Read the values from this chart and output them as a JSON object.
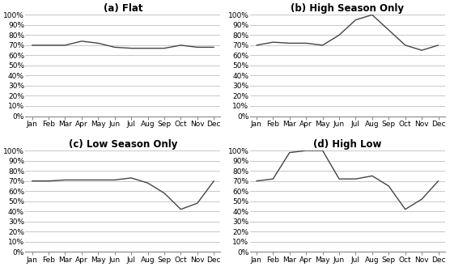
{
  "months": [
    "Jan",
    "Feb",
    "Mar",
    "Apr",
    "May",
    "Jun",
    "Jul",
    "Aug",
    "Sep",
    "Oct",
    "Nov",
    "Dec"
  ],
  "flat": [
    70,
    70,
    70,
    74,
    72,
    68,
    67,
    67,
    67,
    70,
    68,
    68
  ],
  "high_season": [
    70,
    73,
    72,
    72,
    70,
    80,
    95,
    100,
    85,
    70,
    65,
    70
  ],
  "low_season": [
    70,
    70,
    71,
    71,
    71,
    71,
    73,
    68,
    58,
    42,
    48,
    70
  ],
  "high_low": [
    70,
    72,
    98,
    100,
    100,
    72,
    72,
    75,
    65,
    42,
    52,
    70
  ],
  "titles": [
    "(a) Flat",
    "(b) High Season Only",
    "(c) Low Season Only",
    "(d) High Low"
  ],
  "ylim": [
    0,
    100
  ],
  "yticks": [
    0,
    10,
    20,
    30,
    40,
    50,
    60,
    70,
    80,
    90,
    100
  ],
  "line_color": "#444444",
  "grid_color": "#c8c8c8",
  "bg_color": "#ffffff",
  "title_fontsize": 8.5,
  "tick_fontsize": 6.5,
  "font_family": "Arial"
}
